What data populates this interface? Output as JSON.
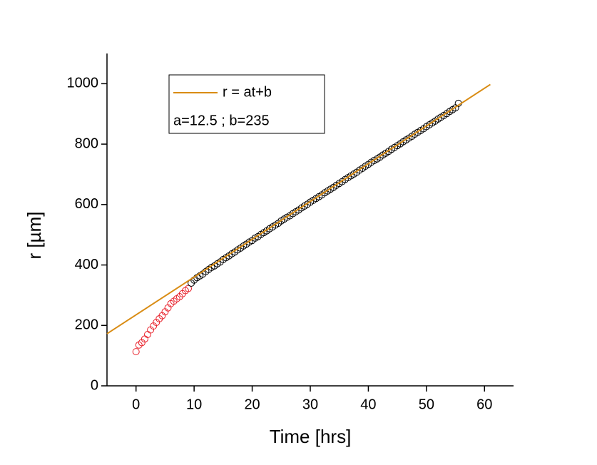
{
  "chart_data": {
    "type": "scatter",
    "xlabel": "Time [hrs]",
    "ylabel": "r [µm]",
    "xlim": [
      -5,
      65
    ],
    "xticks": [
      0,
      10,
      20,
      30,
      40,
      50,
      60
    ],
    "ylim": [
      0,
      1100
    ],
    "yticks": [
      0,
      200,
      400,
      600,
      800,
      1000
    ],
    "annotation": "a=12.5 ; b=235",
    "series": [
      {
        "color": "#e8202a",
        "style": "circle",
        "x": [
          0,
          0.5,
          1,
          1.5,
          2,
          2.5,
          3,
          3.5,
          4,
          4.5,
          5,
          5.5,
          6,
          6.5,
          7,
          7.5,
          8,
          8.5,
          9
        ],
        "values": [
          113,
          135,
          143,
          155,
          170,
          185,
          198,
          210,
          222,
          232,
          245,
          258,
          272,
          280,
          288,
          295,
          305,
          315,
          322
        ]
      },
      {
        "color": "#000000",
        "style": "circle",
        "x": [
          9.5,
          10,
          10.5,
          11,
          11.5,
          12,
          12.5,
          13,
          13.5,
          14,
          14.5,
          15,
          15.5,
          16,
          16.5,
          17,
          17.5,
          18,
          18.5,
          19,
          19.5,
          20,
          20.5,
          21,
          21.5,
          22,
          22.5,
          23,
          23.5,
          24,
          24.5,
          25,
          25.5,
          26,
          26.5,
          27,
          27.5,
          28,
          28.5,
          29,
          29.5,
          30,
          30.5,
          31,
          31.5,
          32,
          32.5,
          33,
          33.5,
          34,
          34.5,
          35,
          35.5,
          36,
          36.5,
          37,
          37.5,
          38,
          38.5,
          39,
          39.5,
          40,
          40.5,
          41,
          41.5,
          42,
          42.5,
          43,
          43.5,
          44,
          44.5,
          45,
          45.5,
          46,
          46.5,
          47,
          47.5,
          48,
          48.5,
          49,
          49.5,
          50,
          50.5,
          51,
          51.5,
          52,
          52.5,
          53,
          53.5,
          54,
          54.5,
          55,
          55.5
        ],
        "values": [
          340,
          350,
          358,
          364,
          370,
          378,
          385,
          392,
          397,
          404,
          410,
          418,
          424,
          430,
          437,
          443,
          450,
          456,
          463,
          469,
          476,
          481,
          489,
          494,
          501,
          507,
          513,
          520,
          526,
          532,
          538,
          546,
          552,
          558,
          563,
          570,
          576,
          582,
          589,
          595,
          601,
          608,
          614,
          620,
          626,
          632,
          639,
          645,
          651,
          657,
          664,
          670,
          676,
          683,
          689,
          695,
          701,
          707,
          714,
          720,
          727,
          733,
          740,
          746,
          751,
          757,
          764,
          770,
          776,
          783,
          789,
          795,
          801,
          808,
          814,
          820,
          826,
          833,
          839,
          845,
          851,
          858,
          864,
          870,
          876,
          883,
          889,
          895,
          901,
          908,
          914,
          920,
          935
        ]
      },
      {
        "name": "r = at+b",
        "color": "#d98c14",
        "style": "line",
        "x": [
          -5,
          61
        ],
        "values": [
          172.5,
          997.5
        ]
      }
    ]
  }
}
